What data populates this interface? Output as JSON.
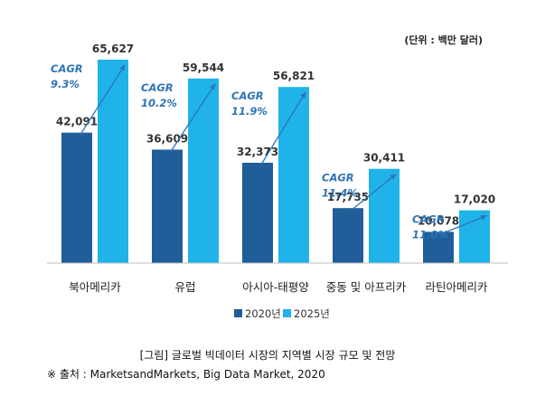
{
  "chart_data": {
    "type": "bar",
    "unit_label": "(단위 : 백만 달러)",
    "categories": [
      "북아메리카",
      "유럽",
      "아시아-태평양",
      "중동 및 아프리카",
      "라틴아메리카"
    ],
    "series": [
      {
        "name": "2020년",
        "values": [
          42091,
          36609,
          32373,
          17735,
          10078
        ]
      },
      {
        "name": "2025년",
        "values": [
          65627,
          59544,
          56821,
          30411,
          17020
        ]
      }
    ],
    "value_labels": [
      [
        "42,091",
        "36,609",
        "32,373",
        "17,735",
        "10,078"
      ],
      [
        "65,627",
        "59,544",
        "56,821",
        "30,411",
        "17,020"
      ]
    ],
    "cagr_labels": [
      "CAGR\n9.3%",
      "CAGR\n10.2%",
      "CAGR\n11.9%",
      "CAGR\n11.4%",
      "CAGR\n11.0%"
    ],
    "ylim": [
      0,
      70000
    ],
    "grid": false,
    "legend_position": "bottom",
    "colors": {
      "2020년": "#1f5e99",
      "2025년": "#1fb3ea",
      "cagr": "#2e74b5",
      "arrow": "#2e74b5"
    }
  },
  "caption": "[그림] 글로벌 빅데이터 시장의 지역별 시장 규모 및 전망",
  "source": "※ 출처 : MarketsandMarkets, Big Data Market, 2020"
}
